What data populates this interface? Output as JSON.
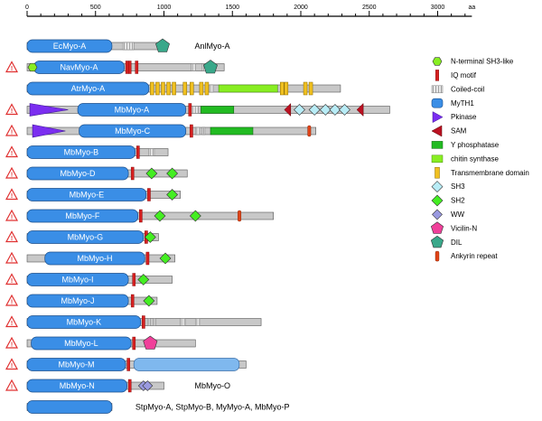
{
  "axis": {
    "unit_label": "aa",
    "ticks": [
      0,
      500,
      1000,
      1500,
      2000,
      2500,
      3000
    ],
    "max": 3250
  },
  "colors": {
    "backbone": "#c8c8c8",
    "myth1": "#3a8ee6",
    "iq": "#d62020",
    "coiled": "#a0a0a0",
    "sh3_like": "#88ee22",
    "pkinase": "#7b2ef0",
    "sam": "#bb1122",
    "yphos": "#22bb22",
    "chitin": "#88ee22",
    "tm": "#f0c020",
    "sh3": "#b8ecf6",
    "sh2": "#44ee22",
    "ww": "#9a9ae0",
    "vicilin": "#f0409a",
    "dil": "#3aa88a",
    "ankyrin": "#e04418",
    "warning": "#e03030"
  },
  "proteins": [
    {
      "name": "EcMyo-A",
      "warn": false,
      "len": 1000,
      "myth1": [
        0,
        620
      ],
      "coiled": [
        [
          700,
          780
        ]
      ],
      "iq": [],
      "dil": [
        990
      ],
      "label_after": "AnlMyo-A"
    },
    {
      "name": "NavMyo-A",
      "warn": true,
      "len": 1440,
      "myth1": [
        50,
        710
      ],
      "sh3_like": [
        20
      ],
      "iq": [
        720,
        740,
        790
      ],
      "coiled": [
        [
          1200,
          1230
        ],
        [
          1280,
          1310
        ]
      ],
      "dil": [
        1340
      ]
    },
    {
      "name": "AtrMyo-A",
      "warn": false,
      "len": 2290,
      "myth1": [
        0,
        890
      ],
      "tm": [
        900,
        940,
        980,
        1020,
        1060,
        1140,
        1190,
        1260,
        1300,
        1850,
        1880,
        2020,
        2060
      ],
      "chitin": [
        [
          1400,
          1830
        ]
      ],
      "coiled": [
        [
          1330,
          1360
        ]
      ]
    },
    {
      "name": "MbMyo-A",
      "warn": true,
      "len": 2650,
      "myth1": [
        370,
        1160
      ],
      "pkinase": [
        [
          20,
          300
        ]
      ],
      "iq": [
        1180
      ],
      "coiled": [
        [
          1200,
          1250
        ]
      ],
      "yphos": [
        [
          1270,
          1510
        ]
      ],
      "sam": [
        1880,
        2410
      ],
      "sh3": [
        1990,
        2100,
        2180,
        2250,
        2320
      ]
    },
    {
      "name": "MbMyo-C",
      "warn": true,
      "len": 2110,
      "myth1": [
        380,
        1160
      ],
      "pkinase": [
        [
          40,
          280
        ]
      ],
      "iq": [
        1190
      ],
      "coiled": [
        [
          1230,
          1260
        ],
        [
          1280,
          1300
        ]
      ],
      "yphos": [
        [
          1340,
          1650
        ]
      ],
      "ankyrin": [
        2050
      ]
    },
    {
      "name": "MbMyo-B",
      "warn": true,
      "len": 1030,
      "myth1": [
        0,
        790
      ],
      "iq": [
        800
      ],
      "coiled": [
        [
          890,
          930
        ]
      ]
    },
    {
      "name": "MbMyo-D",
      "warn": true,
      "len": 1170,
      "myth1": [
        0,
        740
      ],
      "iq": [
        760
      ],
      "sh2": [
        910,
        1060
      ]
    },
    {
      "name": "MbMyo-E",
      "warn": true,
      "len": 1120,
      "myth1": [
        0,
        870
      ],
      "iq": [
        880
      ],
      "sh2": [
        1060
      ]
    },
    {
      "name": "MbMyo-F",
      "warn": true,
      "len": 1800,
      "myth1": [
        0,
        810
      ],
      "iq": [
        820
      ],
      "sh2": [
        970,
        1230
      ],
      "ankyrin": [
        1540
      ]
    },
    {
      "name": "MbMyo-G",
      "warn": true,
      "len": 960,
      "myth1": [
        0,
        850
      ],
      "iq": [
        860
      ],
      "sh2": [
        900
      ]
    },
    {
      "name": "MbMyo-H",
      "warn": true,
      "len": 1080,
      "myth1": [
        130,
        860
      ],
      "iq": [
        870
      ],
      "sh2": [
        1010
      ]
    },
    {
      "name": "MbMyo-I",
      "warn": true,
      "len": 1060,
      "myth1": [
        0,
        740
      ],
      "iq": [
        770
      ],
      "sh2": [
        850
      ]
    },
    {
      "name": "MbMyo-J",
      "warn": true,
      "len": 950,
      "myth1": [
        0,
        740
      ],
      "iq": [
        760
      ],
      "sh2": [
        890
      ]
    },
    {
      "name": "MbMyo-K",
      "warn": true,
      "len": 1710,
      "myth1": [
        0,
        830
      ],
      "iq": [
        840
      ],
      "coiled": [
        [
          880,
          900
        ],
        [
          920,
          940
        ],
        [
          1120,
          1160
        ],
        [
          1230,
          1260
        ]
      ]
    },
    {
      "name": "MbMyo-L",
      "warn": true,
      "len": 1230,
      "myth1": [
        30,
        760
      ],
      "iq": [
        770
      ],
      "vicilin": [
        900
      ]
    },
    {
      "name": "MbMyo-M",
      "warn": true,
      "len": 1600,
      "myth1": [
        0,
        720
      ],
      "iq": [
        730
      ],
      "myth1_2": [
        780,
        1550
      ]
    },
    {
      "name": "MbMyo-N",
      "warn": true,
      "len": 1000,
      "myth1": [
        0,
        730
      ],
      "iq": [
        740
      ],
      "ww": [
        850,
        880
      ],
      "label_after": "MbMyo-O"
    },
    {
      "name": "",
      "warn": false,
      "len": 620,
      "myth1": [
        0,
        620
      ],
      "label_after": "StpMyo-A, StpMyo-B, MyMyo-A, MbMyo-P"
    }
  ],
  "legend": [
    {
      "key": "sh3_like",
      "label": "N-terminal SH3-like"
    },
    {
      "key": "iq",
      "label": "IQ motif"
    },
    {
      "key": "coiled",
      "label": "Coiled-coil"
    },
    {
      "key": "myth1",
      "label": "MyTH1"
    },
    {
      "key": "pkinase",
      "label": "Pkinase"
    },
    {
      "key": "sam",
      "label": "SAM"
    },
    {
      "key": "yphos",
      "label": "Y phosphatase"
    },
    {
      "key": "chitin",
      "label": "chitin synthase"
    },
    {
      "key": "tm",
      "label": "Transmembrane domain"
    },
    {
      "key": "sh3",
      "label": "SH3"
    },
    {
      "key": "sh2",
      "label": "SH2"
    },
    {
      "key": "ww",
      "label": "WW"
    },
    {
      "key": "vicilin",
      "label": "Vicilin-N"
    },
    {
      "key": "dil",
      "label": "DIL"
    },
    {
      "key": "ankyrin",
      "label": "Ankyrin repeat"
    }
  ]
}
